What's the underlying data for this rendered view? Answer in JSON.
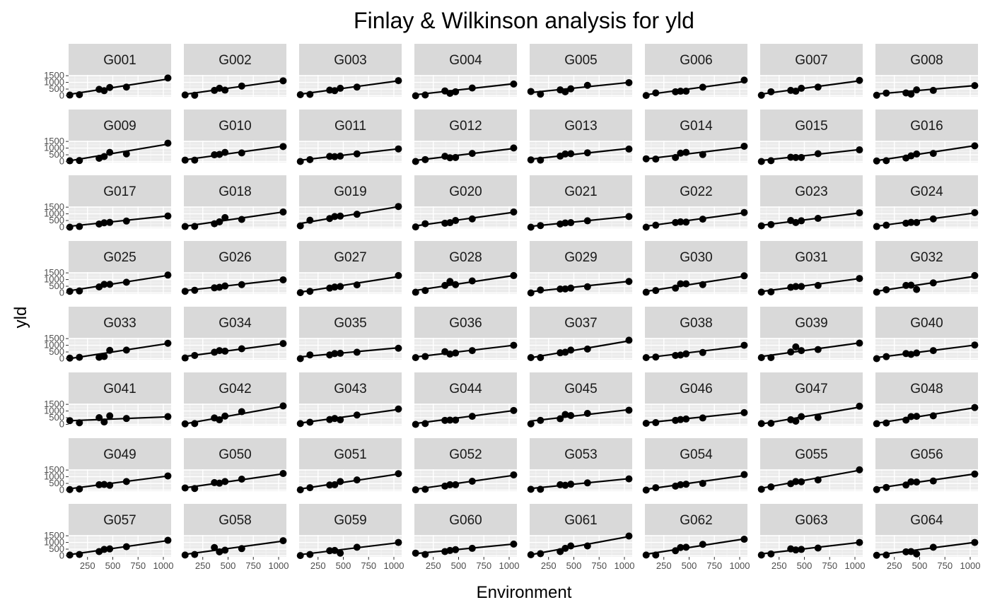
{
  "chart_data": {
    "type": "scatter",
    "title": "Finlay & Wilkinson analysis for yld",
    "xlabel": "Environment",
    "ylabel": "yld",
    "x_ticks": [
      250,
      500,
      750,
      1000
    ],
    "y_ticks": [
      0,
      500,
      1000,
      1500
    ],
    "xlim": [
      63,
      1077
    ],
    "ylim": [
      -80,
      1560
    ],
    "grid": true,
    "environments": [
      75,
      170,
      365,
      415,
      470,
      635,
      1045
    ],
    "panels": [
      {
        "name": "G001",
        "y": [
          50,
          80,
          480,
          380,
          620,
          650,
          1330
        ],
        "intercept": 20,
        "slope": 1.18
      },
      {
        "name": "G002",
        "y": [
          60,
          40,
          400,
          560,
          420,
          730,
          1120
        ],
        "intercept": 30,
        "slope": 1.06
      },
      {
        "name": "G003",
        "y": [
          80,
          100,
          420,
          380,
          560,
          650,
          1130
        ],
        "intercept": 40,
        "slope": 1.03
      },
      {
        "name": "G004",
        "y": [
          0,
          60,
          360,
          180,
          300,
          580,
          880
        ],
        "intercept": 10,
        "slope": 0.85
      },
      {
        "name": "G005",
        "y": [
          320,
          120,
          440,
          300,
          520,
          780,
          980
        ],
        "intercept": 180,
        "slope": 0.78
      },
      {
        "name": "G006",
        "y": [
          20,
          210,
          300,
          340,
          340,
          640,
          1170
        ],
        "intercept": 0,
        "slope": 1.02
      },
      {
        "name": "G007",
        "y": [
          40,
          300,
          400,
          340,
          560,
          650,
          1150
        ],
        "intercept": 50,
        "slope": 1.02
      },
      {
        "name": "G008",
        "y": [
          40,
          200,
          210,
          120,
          440,
          400,
          760
        ],
        "intercept": 80,
        "slope": 0.65
      },
      {
        "name": "G009",
        "y": [
          50,
          70,
          240,
          370,
          680,
          570,
          1370
        ],
        "intercept": -40,
        "slope": 1.28
      },
      {
        "name": "G010",
        "y": [
          100,
          100,
          500,
          530,
          680,
          640,
          1120
        ],
        "intercept": 50,
        "slope": 1.05
      },
      {
        "name": "G011",
        "y": [
          0,
          140,
          380,
          360,
          400,
          570,
          940
        ],
        "intercept": 30,
        "slope": 0.88
      },
      {
        "name": "G012",
        "y": [
          0,
          140,
          390,
          280,
          300,
          600,
          1010
        ],
        "intercept": 10,
        "slope": 0.92
      },
      {
        "name": "G013",
        "y": [
          120,
          100,
          400,
          560,
          580,
          650,
          930
        ],
        "intercept": 110,
        "slope": 0.83
      },
      {
        "name": "G014",
        "y": [
          200,
          180,
          300,
          620,
          680,
          520,
          1140
        ],
        "intercept": 120,
        "slope": 0.92
      },
      {
        "name": "G015",
        "y": [
          0,
          60,
          320,
          300,
          300,
          580,
          870
        ],
        "intercept": 10,
        "slope": 0.84
      },
      {
        "name": "G016",
        "y": [
          40,
          60,
          260,
          420,
          560,
          600,
          1170
        ],
        "intercept": -20,
        "slope": 1.15
      },
      {
        "name": "G017",
        "y": [
          0,
          50,
          240,
          330,
          360,
          460,
          840
        ],
        "intercept": 10,
        "slope": 0.8
      },
      {
        "name": "G018",
        "y": [
          50,
          60,
          260,
          400,
          720,
          580,
          1140
        ],
        "intercept": -10,
        "slope": 1.1
      },
      {
        "name": "G019",
        "y": [
          100,
          520,
          650,
          800,
          830,
          970,
          1550
        ],
        "intercept": 180,
        "slope": 1.3
      },
      {
        "name": "G020",
        "y": [
          20,
          260,
          300,
          340,
          500,
          620,
          1140
        ],
        "intercept": 20,
        "slope": 1.05
      },
      {
        "name": "G021",
        "y": [
          0,
          120,
          240,
          320,
          340,
          480,
          800
        ],
        "intercept": 10,
        "slope": 0.76
      },
      {
        "name": "G022",
        "y": [
          0,
          150,
          350,
          400,
          380,
          600,
          1100
        ],
        "intercept": 0,
        "slope": 1.03
      },
      {
        "name": "G023",
        "y": [
          100,
          200,
          500,
          350,
          480,
          660,
          1080
        ],
        "intercept": 70,
        "slope": 0.95
      },
      {
        "name": "G024",
        "y": [
          50,
          150,
          300,
          360,
          350,
          620,
          1090
        ],
        "intercept": 0,
        "slope": 1.02
      },
      {
        "name": "G025",
        "y": [
          120,
          150,
          450,
          640,
          640,
          800,
          1340
        ],
        "intercept": 80,
        "slope": 1.18
      },
      {
        "name": "G026",
        "y": [
          120,
          200,
          380,
          420,
          520,
          620,
          980
        ],
        "intercept": 110,
        "slope": 0.86
      },
      {
        "name": "G027",
        "y": [
          20,
          120,
          360,
          440,
          480,
          600,
          1300
        ],
        "intercept": -30,
        "slope": 1.2
      },
      {
        "name": "G028",
        "y": [
          50,
          180,
          560,
          860,
          620,
          900,
          1300
        ],
        "intercept": 100,
        "slope": 1.15
      },
      {
        "name": "G029",
        "y": [
          0,
          220,
          290,
          300,
          360,
          460,
          860
        ],
        "intercept": 30,
        "slope": 0.8
      },
      {
        "name": "G030",
        "y": [
          50,
          180,
          360,
          680,
          680,
          620,
          1280
        ],
        "intercept": 30,
        "slope": 1.17
      },
      {
        "name": "G031",
        "y": [
          60,
          80,
          420,
          480,
          480,
          560,
          1080
        ],
        "intercept": 30,
        "slope": 1.0
      },
      {
        "name": "G032",
        "y": [
          60,
          240,
          560,
          580,
          260,
          750,
          1300
        ],
        "intercept": 40,
        "slope": 1.15
      },
      {
        "name": "G033",
        "y": [
          40,
          100,
          100,
          160,
          620,
          640,
          1150
        ],
        "intercept": -80,
        "slope": 1.16
      },
      {
        "name": "G034",
        "y": [
          50,
          240,
          480,
          600,
          560,
          740,
          1130
        ],
        "intercept": 90,
        "slope": 1.0
      },
      {
        "name": "G035",
        "y": [
          0,
          280,
          280,
          380,
          400,
          480,
          780
        ],
        "intercept": 80,
        "slope": 0.7
      },
      {
        "name": "G036",
        "y": [
          80,
          160,
          520,
          340,
          420,
          600,
          1000
        ],
        "intercept": 60,
        "slope": 0.9
      },
      {
        "name": "G037",
        "y": [
          80,
          80,
          440,
          480,
          640,
          720,
          1380
        ],
        "intercept": -30,
        "slope": 1.3
      },
      {
        "name": "G038",
        "y": [
          80,
          120,
          240,
          270,
          360,
          460,
          1000
        ],
        "intercept": 0,
        "slope": 0.9
      },
      {
        "name": "G039",
        "y": [
          80,
          80,
          500,
          880,
          600,
          680,
          1160
        ],
        "intercept": 80,
        "slope": 1.05
      },
      {
        "name": "G040",
        "y": [
          0,
          150,
          380,
          320,
          420,
          600,
          1020
        ],
        "intercept": 10,
        "slope": 0.96
      },
      {
        "name": "G041",
        "y": [
          280,
          120,
          500,
          180,
          640,
          440,
          580
        ],
        "intercept": 250,
        "slope": 0.3
      },
      {
        "name": "G042",
        "y": [
          40,
          60,
          480,
          340,
          620,
          950,
          1380
        ],
        "intercept": -60,
        "slope": 1.35
      },
      {
        "name": "G043",
        "y": [
          60,
          160,
          360,
          440,
          340,
          700,
          1150
        ],
        "intercept": 20,
        "slope": 1.05
      },
      {
        "name": "G044",
        "y": [
          0,
          60,
          300,
          320,
          320,
          600,
          1040
        ],
        "intercept": -10,
        "slope": 1.0
      },
      {
        "name": "G045",
        "y": [
          40,
          300,
          420,
          740,
          660,
          820,
          1060
        ],
        "intercept": 180,
        "slope": 0.88
      },
      {
        "name": "G046",
        "y": [
          80,
          130,
          300,
          360,
          400,
          480,
          880
        ],
        "intercept": 60,
        "slope": 0.78
      },
      {
        "name": "G047",
        "y": [
          60,
          80,
          350,
          240,
          580,
          520,
          1360
        ],
        "intercept": -70,
        "slope": 1.3
      },
      {
        "name": "G048",
        "y": [
          50,
          100,
          320,
          580,
          600,
          640,
          1260
        ],
        "intercept": -10,
        "slope": 1.2
      },
      {
        "name": "G049",
        "y": [
          40,
          80,
          400,
          420,
          360,
          640,
          1060
        ],
        "intercept": 30,
        "slope": 0.98
      },
      {
        "name": "G050",
        "y": [
          160,
          120,
          560,
          520,
          640,
          820,
          1240
        ],
        "intercept": 90,
        "slope": 1.08
      },
      {
        "name": "G051",
        "y": [
          20,
          180,
          380,
          400,
          640,
          760,
          1230
        ],
        "intercept": 0,
        "slope": 1.15
      },
      {
        "name": "G052",
        "y": [
          20,
          60,
          300,
          400,
          400,
          660,
          1140
        ],
        "intercept": -20,
        "slope": 1.08
      },
      {
        "name": "G053",
        "y": [
          60,
          60,
          400,
          360,
          440,
          540,
          840
        ],
        "intercept": 60,
        "slope": 0.76
      },
      {
        "name": "G054",
        "y": [
          0,
          180,
          300,
          400,
          440,
          500,
          1160
        ],
        "intercept": -20,
        "slope": 1.06
      },
      {
        "name": "G055",
        "y": [
          60,
          240,
          480,
          640,
          620,
          760,
          1520
        ],
        "intercept": 40,
        "slope": 1.38
      },
      {
        "name": "G056",
        "y": [
          40,
          200,
          380,
          620,
          600,
          680,
          1200
        ],
        "intercept": 60,
        "slope": 1.1
      },
      {
        "name": "G057",
        "y": [
          60,
          100,
          320,
          480,
          520,
          680,
          1160
        ],
        "intercept": 10,
        "slope": 1.08
      },
      {
        "name": "G058",
        "y": [
          60,
          100,
          620,
          300,
          420,
          540,
          1130
        ],
        "intercept": 30,
        "slope": 1.03
      },
      {
        "name": "G059",
        "y": [
          20,
          100,
          380,
          400,
          200,
          640,
          1000
        ],
        "intercept": 20,
        "slope": 0.92
      },
      {
        "name": "G060",
        "y": [
          200,
          100,
          320,
          400,
          460,
          560,
          880
        ],
        "intercept": 110,
        "slope": 0.74
      },
      {
        "name": "G061",
        "y": [
          80,
          160,
          320,
          560,
          740,
          740,
          1480
        ],
        "intercept": -20,
        "slope": 1.4
      },
      {
        "name": "G062",
        "y": [
          60,
          60,
          380,
          620,
          640,
          860,
          1240
        ],
        "intercept": 30,
        "slope": 1.18
      },
      {
        "name": "G063",
        "y": [
          60,
          140,
          520,
          440,
          480,
          580,
          1000
        ],
        "intercept": 80,
        "slope": 0.88
      },
      {
        "name": "G064",
        "y": [
          40,
          60,
          300,
          320,
          140,
          640,
          1000
        ],
        "intercept": -20,
        "slope": 0.98
      }
    ]
  }
}
